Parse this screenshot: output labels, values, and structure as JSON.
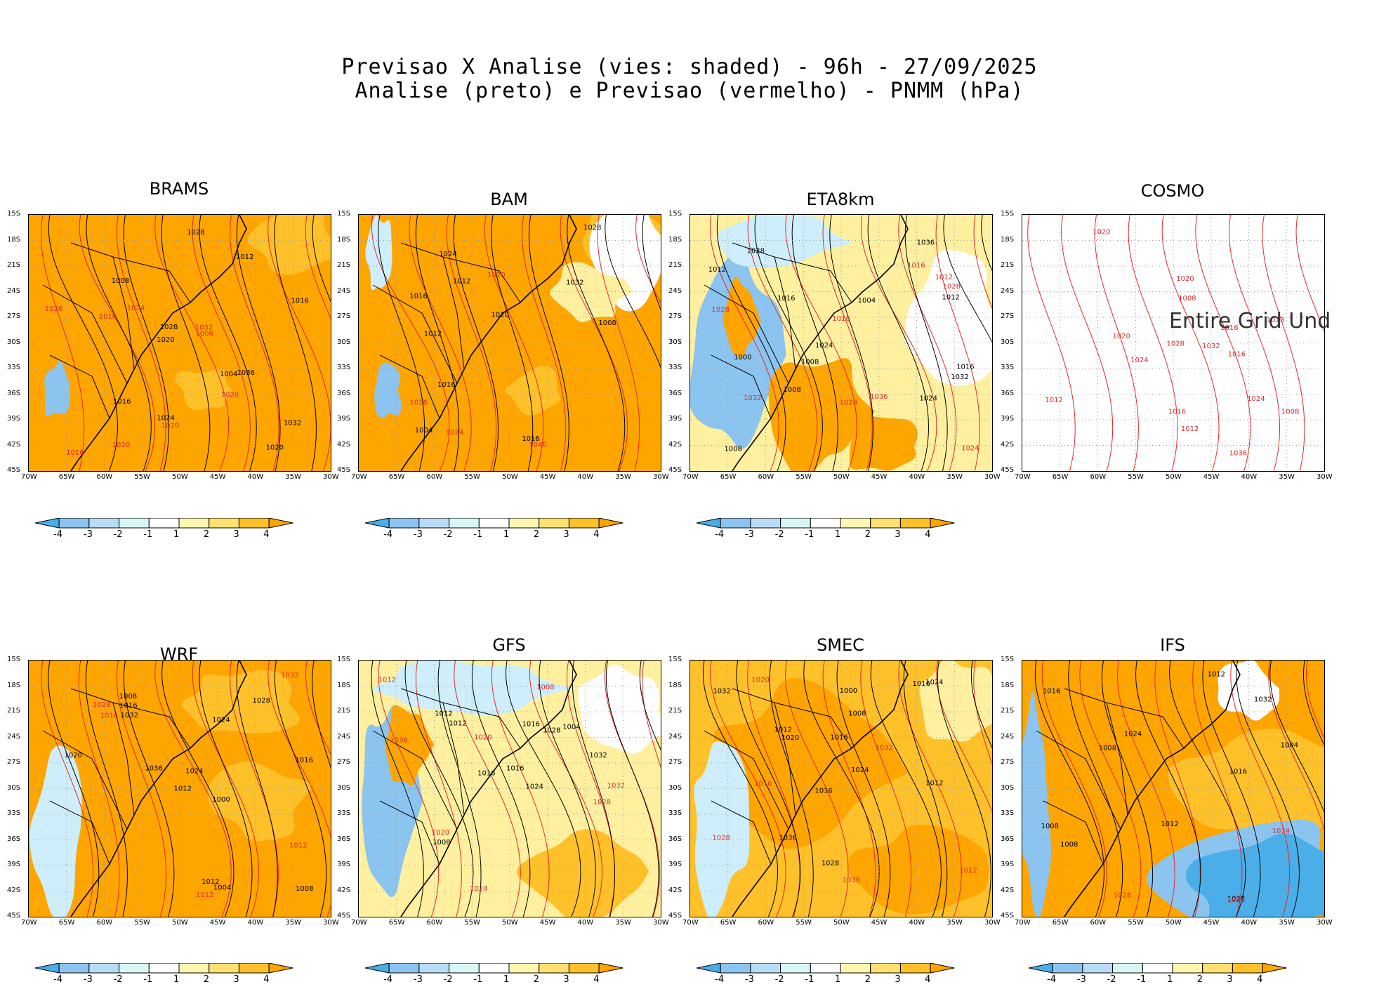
{
  "title": {
    "line1": "Previsao X Analise (vies: shaded) - 96h - 27/09/2025",
    "line2": "Analise (preto) e Previsao (vermelho) - PNMM (hPa)"
  },
  "axes": {
    "lat_labels": [
      "15S",
      "18S",
      "21S",
      "24S",
      "27S",
      "30S",
      "33S",
      "36S",
      "39S",
      "42S",
      "45S"
    ],
    "lon_labels": [
      "70W",
      "65W",
      "60W",
      "55W",
      "50W",
      "45W",
      "40W",
      "35W",
      "30W"
    ]
  },
  "colorbar": {
    "labels": [
      "-4",
      "-3",
      "-2",
      "-1",
      "1",
      "2",
      "3",
      "4"
    ],
    "colors": [
      "#4aaee8",
      "#8cc4f0",
      "#b8dcf6",
      "#d8f6f6",
      "#ffffff",
      "#fff7b0",
      "#ffe070",
      "#ffc12a",
      "#ffa500"
    ]
  },
  "contour_colors": {
    "analysis": "#000000",
    "forecast": "#e0282b"
  },
  "bias_colors": {
    "pos_strong": "#ffa500",
    "pos_mid": "#ffc12a",
    "pos_weak": "#fff0a0",
    "neutral": "#ffffff",
    "neg_weak": "#cdeefa",
    "neg_mid": "#8cc4f0",
    "neg_strong": "#4aaee8"
  },
  "panels": [
    {
      "name": "BRAMS",
      "labels_black": [
        "1004",
        "1016",
        "1020",
        "1024",
        "1028",
        "1008",
        "1012",
        "1016",
        "1020",
        "1032",
        "1036",
        "1028"
      ],
      "labels_red": [
        "1024",
        "1016",
        "1020",
        "1020",
        "1036",
        "1032",
        "1016",
        "1020",
        "1008"
      ],
      "undefined_text": ""
    },
    {
      "name": "BAM",
      "labels_black": [
        "1016",
        "1004",
        "1012",
        "1028",
        "1008",
        "1012",
        "1016",
        "1020",
        "1032",
        "1016",
        "1024"
      ],
      "labels_red": [
        "1024",
        "1020",
        "1040",
        "1016"
      ],
      "undefined_text": ""
    },
    {
      "name": "ETA8km",
      "labels_black": [
        "1008",
        "1024",
        "1004",
        "1012",
        "1008",
        "1028",
        "1000",
        "1024",
        "1032",
        "1008",
        "1012",
        "1016",
        "1036",
        "1016"
      ],
      "labels_red": [
        "1016",
        "1024",
        "1028",
        "1028",
        "1032",
        "1028",
        "1012",
        "1036",
        "1016"
      ],
      "undefined_text": ""
    },
    {
      "name": "COSMO",
      "labels_black": [],
      "labels_red": [
        "1016",
        "1020",
        "1024",
        "1012",
        "1024",
        "1008",
        "1012",
        "1016",
        "1008",
        "1028",
        "1032",
        "1028",
        "1020",
        "1020",
        "1016",
        "1036"
      ],
      "undefined_text": "Entire Grid Und"
    },
    {
      "name": "WRF",
      "labels_black": [
        "1008",
        "1012",
        "1024",
        "1020",
        "1024",
        "1004",
        "1008",
        "1028",
        "1000",
        "1032",
        "1012",
        "1016",
        "1036",
        "1016"
      ],
      "labels_red": [
        "1012",
        "1012",
        "1028",
        "1032",
        "1016"
      ],
      "undefined_text": ""
    },
    {
      "name": "GFS",
      "labels_black": [
        "1016",
        "1004",
        "1024",
        "1028",
        "1012",
        "1032",
        "1008",
        "1012",
        "1016",
        "1016"
      ],
      "labels_red": [
        "1020",
        "1008",
        "1012",
        "1024",
        "1028",
        "1032",
        "1036",
        "1020"
      ],
      "undefined_text": ""
    },
    {
      "name": "SMEC",
      "labels_black": [
        "1016",
        "1012",
        "1024",
        "1008",
        "1024",
        "1028",
        "1000",
        "1012",
        "1016",
        "1032",
        "1020",
        "1036",
        "1016"
      ],
      "labels_red": [
        "1012",
        "1016",
        "1028",
        "1032",
        "1036",
        "1020"
      ],
      "undefined_text": ""
    },
    {
      "name": "IFS",
      "labels_black": [
        "1016",
        "1008",
        "1012",
        "1004",
        "1024",
        "1008",
        "1028",
        "1008",
        "1012",
        "1016",
        "1032"
      ],
      "labels_red": [
        "1020",
        "1028",
        "1024"
      ],
      "undefined_text": ""
    }
  ]
}
